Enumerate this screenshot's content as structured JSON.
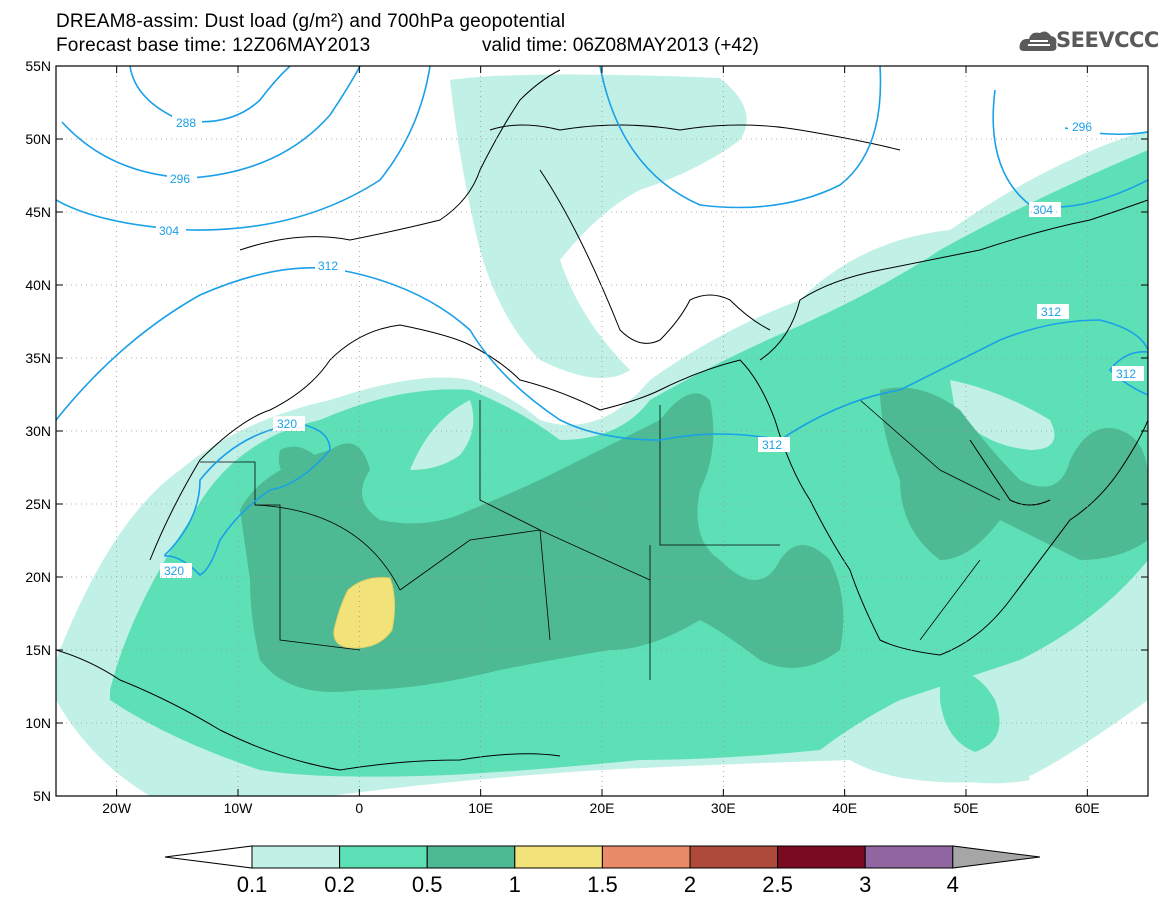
{
  "header": {
    "title_line1": "DREAM8-assim: Dust load (g/m²) and 700hPa geopotential",
    "title_line2_left": "Forecast base time: 12Z06MAY2013",
    "title_line2_right": "valid time: 06Z08MAY2013 (+42)",
    "logo_text": "SEEVCCC"
  },
  "map": {
    "lon_range": [
      -25,
      65
    ],
    "lat_range": [
      5,
      55
    ],
    "lon_ticks": [
      "20W",
      "10W",
      "0",
      "10E",
      "20E",
      "30E",
      "40E",
      "50E",
      "60E"
    ],
    "lat_ticks": [
      "55N",
      "50N",
      "45N",
      "40N",
      "35N",
      "30N",
      "25N",
      "20N",
      "15N",
      "10N",
      "5N"
    ],
    "contour_labels": [
      "288",
      "296",
      "304",
      "312",
      "320",
      "320",
      "312",
      "312",
      "312",
      "304",
      "296"
    ],
    "contour_color": "#1aa0e8"
  },
  "colorbar": {
    "labels": [
      "0.1",
      "0.2",
      "0.5",
      "1",
      "1.5",
      "2",
      "2.5",
      "3",
      "4"
    ],
    "colors": [
      "#c0f0e6",
      "#5ee0b6",
      "#4dba93",
      "#f2e27a",
      "#e98a68",
      "#ad4a3b",
      "#7a0a22",
      "#8f66a0"
    ],
    "low_end_color": "#ffffff",
    "high_end_color": "#a6a6a6"
  }
}
